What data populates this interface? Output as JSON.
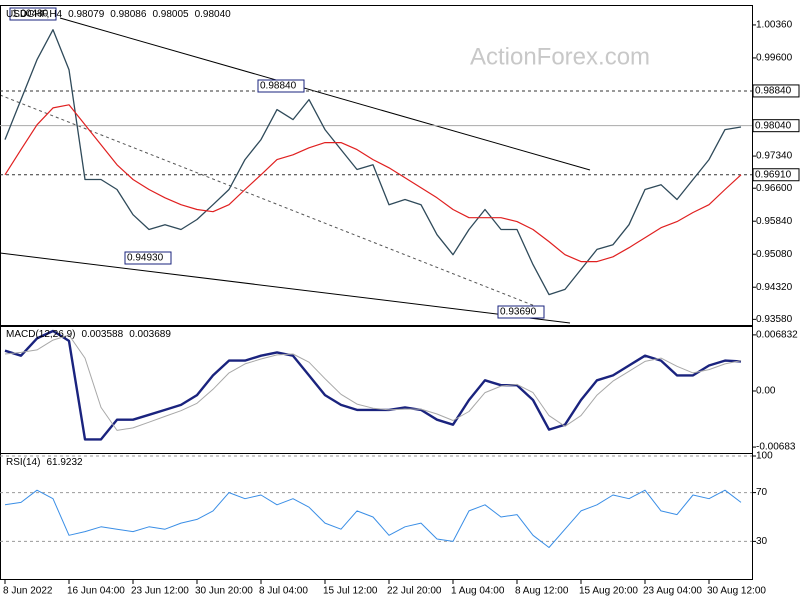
{
  "watermark": "ActionForex.com",
  "chart_data": [
    {
      "type": "line",
      "title": "USDCHF,H4",
      "readings": [
        "0.98079",
        "0.98086",
        "0.98005",
        "0.98040"
      ],
      "ylim": [
        0.9345,
        1.0075
      ],
      "yticks": [
        {
          "value": 1.0036,
          "label": "1.00360"
        },
        {
          "value": 0.996,
          "label": "0.99600"
        },
        {
          "value": 0.9734,
          "label": "0.97340"
        },
        {
          "value": 0.966,
          "label": "0.96600"
        },
        {
          "value": 0.9584,
          "label": "0.95840"
        },
        {
          "value": 0.9508,
          "label": "0.95080"
        },
        {
          "value": 0.9432,
          "label": "0.94320"
        },
        {
          "value": 0.9358,
          "label": "0.93580"
        }
      ],
      "levels": [
        {
          "value": 0.9884,
          "label": "0.98840"
        },
        {
          "value": 0.9691,
          "label": "0.96910"
        }
      ],
      "last": {
        "value": 0.9804,
        "label": "0.98040"
      },
      "annotations": [
        "1.00480",
        "0.98840",
        "0.94930",
        "0.93690"
      ],
      "series": [
        {
          "color": "#2f4a5a",
          "values": [
            0.9772,
            0.9864,
            0.9956,
            1.0025,
            0.9933,
            0.968,
            0.968,
            0.9657,
            0.9599,
            0.9565,
            0.9576,
            0.9565,
            0.9588,
            0.9622,
            0.9657,
            0.9726,
            0.9772,
            0.9841,
            0.9818,
            0.9864,
            0.9795,
            0.9749,
            0.9703,
            0.9714,
            0.9622,
            0.9634,
            0.9622,
            0.9553,
            0.9507,
            0.9565,
            0.9611,
            0.9565,
            0.9565,
            0.9484,
            0.9415,
            0.9427,
            0.9473,
            0.9519,
            0.953,
            0.9576,
            0.9657,
            0.9668,
            0.9634,
            0.968,
            0.9726,
            0.9795,
            0.9801
          ]
        },
        {
          "color": "#e02020",
          "values": [
            0.9691,
            0.9749,
            0.9806,
            0.9845,
            0.9852,
            0.9806,
            0.976,
            0.9714,
            0.968,
            0.9657,
            0.9638,
            0.9622,
            0.9611,
            0.9606,
            0.9622,
            0.9657,
            0.9691,
            0.9726,
            0.9737,
            0.9753,
            0.9765,
            0.9765,
            0.9749,
            0.9726,
            0.9707,
            0.9684,
            0.9661,
            0.9638,
            0.9611,
            0.9592,
            0.9592,
            0.9592,
            0.9583,
            0.9565,
            0.9537,
            0.9507,
            0.9491,
            0.9491,
            0.9502,
            0.9523,
            0.9546,
            0.9569,
            0.9583,
            0.9604,
            0.9622,
            0.9657,
            0.9691
          ]
        }
      ]
    },
    {
      "type": "line",
      "title": "MACD(12,26,9)",
      "readings": [
        "0.003588",
        "0.003689"
      ],
      "ylim": [
        -0.00743,
        0.00767
      ],
      "yticks": [
        {
          "value": 0.006832,
          "label": "0.006832"
        },
        {
          "value": 0,
          "label": "0.00"
        },
        {
          "value": -0.00683,
          "label": "-0.00683"
        }
      ],
      "series": [
        {
          "color": "#1a237e",
          "values": [
            0.0049,
            0.0043,
            0.0064,
            0.0073,
            0.0061,
            -0.0059,
            -0.0059,
            -0.0035,
            -0.0035,
            -0.0029,
            -0.0023,
            -0.0017,
            -0.0005,
            0.0019,
            0.0037,
            0.0037,
            0.0043,
            0.0047,
            0.0043,
            0.0019,
            -0.0005,
            -0.0017,
            -0.0023,
            -0.0023,
            -0.0023,
            -0.002,
            -0.0023,
            -0.0035,
            -0.0041,
            -0.0011,
            0.0013,
            0.0007,
            0.0007,
            -0.0011,
            -0.0047,
            -0.0041,
            -0.0011,
            0.0013,
            0.0019,
            0.0031,
            0.0043,
            0.0037,
            0.0019,
            0.0019,
            0.0031,
            0.0037,
            0.0036
          ]
        },
        {
          "color": "#a8a8a8",
          "values": [
            0.0045,
            0.0047,
            0.005,
            0.0062,
            0.0068,
            0.004,
            -0.002,
            -0.0048,
            -0.0045,
            -0.0038,
            -0.0031,
            -0.0024,
            -0.0015,
            0.0002,
            0.0022,
            0.0033,
            0.0039,
            0.0044,
            0.0045,
            0.0035,
            0.0015,
            -0.0004,
            -0.0016,
            -0.0021,
            -0.0023,
            -0.0022,
            -0.0022,
            -0.0028,
            -0.0036,
            -0.0025,
            -0.0002,
            0.0006,
            0.0008,
            -0.0002,
            -0.003,
            -0.0043,
            -0.003,
            -0.0005,
            0.0012,
            0.0024,
            0.0036,
            0.004,
            0.003,
            0.0022,
            0.0026,
            0.0033,
            0.0037
          ]
        }
      ]
    },
    {
      "type": "line",
      "title": "RSI(14)",
      "readings": [
        "61.9232"
      ],
      "ylim": [
        0,
        100
      ],
      "yticks": [
        100,
        70,
        30
      ],
      "grid": true,
      "categories": [
        "8 Jun 2022",
        null,
        null,
        null,
        "16 Jun 04:00",
        null,
        null,
        null,
        "23 Jun 12:00",
        null,
        null,
        null,
        "30 Jun 20:00",
        null,
        null,
        null,
        "8 Jul 04:00",
        null,
        null,
        null,
        "15 Jul 12:00",
        null,
        null,
        null,
        "22 Jul 20:00",
        null,
        null,
        null,
        "1 Aug 04:00",
        null,
        null,
        null,
        "8 Aug 12:00",
        null,
        null,
        null,
        "15 Aug 20:00",
        null,
        null,
        null,
        "23 Aug 04:00",
        null,
        null,
        null,
        "30 Aug 12:00",
        null,
        null
      ],
      "series": [
        {
          "color": "#3a8ee6",
          "values": [
            60,
            62,
            72,
            65,
            35,
            38,
            42,
            40,
            38,
            42,
            40,
            45,
            48,
            55,
            70,
            65,
            68,
            60,
            65,
            58,
            45,
            40,
            55,
            50,
            35,
            42,
            45,
            32,
            30,
            55,
            60,
            50,
            52,
            35,
            25,
            40,
            55,
            60,
            68,
            65,
            72,
            55,
            52,
            68,
            65,
            72,
            62
          ]
        }
      ]
    }
  ]
}
